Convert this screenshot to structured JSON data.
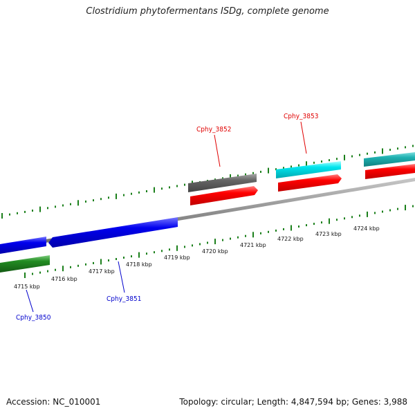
{
  "title": "Clostridium phytofermentans ISDg, complete genome",
  "footer": {
    "accession": "Accession: NC_010001",
    "topology": "Topology: circular; Length: 4,847,594 bp; Genes: 3,988"
  },
  "colors": {
    "tick": "#1a7f1a",
    "backbone": "#8c8c8c",
    "forward_cds": "#ff0000",
    "reverse_cds": "#0000ee",
    "gene": "#666666",
    "rna": "#00e5ee",
    "other": "#228b22",
    "label_forward": "#e00000",
    "label_reverse": "#0000cc"
  },
  "scale": {
    "kbp_labels": [
      "4715 kbp",
      "4716 kbp",
      "4717 kbp",
      "4718 kbp",
      "4719 kbp",
      "4720 kbp",
      "4721 kbp",
      "4722 kbp",
      "4723 kbp",
      "4724 kbp"
    ]
  },
  "gene_labels": {
    "cphy_3850": "Cphy_3850",
    "cphy_3851": "Cphy_3851",
    "cphy_3852": "Cphy_3852",
    "cphy_3853": "Cphy_3853"
  }
}
